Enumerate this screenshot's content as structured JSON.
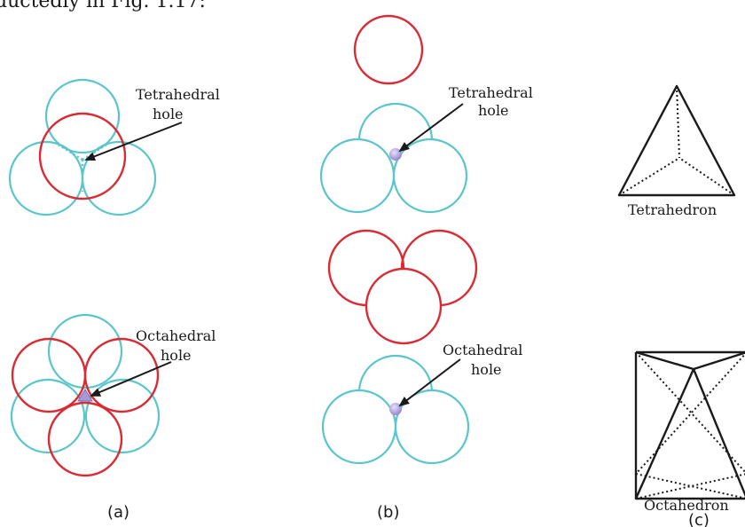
{
  "header_text": "ductedly in Fig. 1.17:",
  "labels": {
    "a_tetra_line1": "Tetrahedral",
    "a_tetra_line2": "hole",
    "a_octa_line1": "Octahedral",
    "a_octa_line2": "hole",
    "b_tetra_line1": "Tetrahedral",
    "b_tetra_line2": "hole",
    "b_octa_line1": "Octahedral",
    "b_octa_line2": "hole",
    "tetrahedron": "Tetrahedron",
    "octahedron": "Octahedron"
  },
  "captions": {
    "a": "(a)",
    "b": "(b)",
    "c": "(c)"
  },
  "colors": {
    "bottom_layer": "#5bc5cc",
    "top_layer": "#d92b34",
    "hole_marker": "#a89ad6",
    "ink": "#1a1a1a"
  }
}
